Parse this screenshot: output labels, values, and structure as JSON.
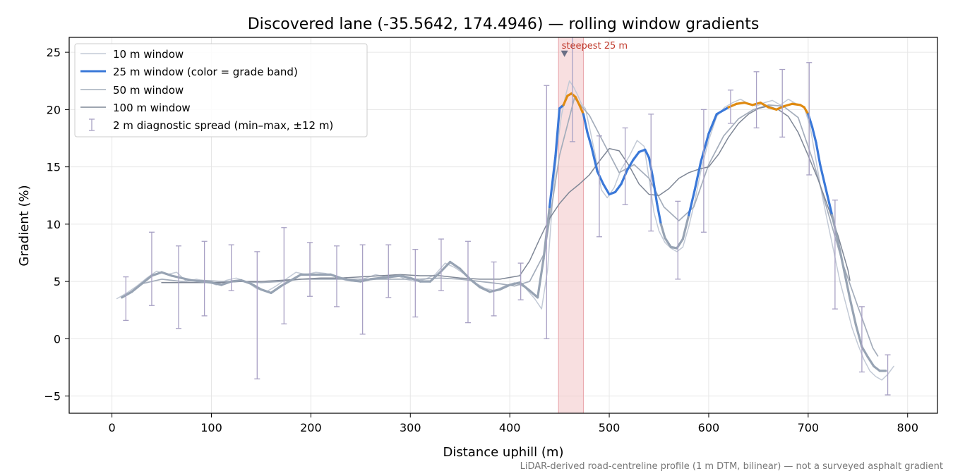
{
  "chart_data": {
    "type": "line",
    "title": "Discovered lane (-35.5642, 174.4946) — rolling window gradients",
    "xlabel": "Distance uphill (m)",
    "ylabel": "Gradient (%)",
    "xlim": [
      -43,
      830
    ],
    "ylim": [
      -6.5,
      26.3
    ],
    "x_ticks": [
      0,
      100,
      200,
      300,
      400,
      500,
      600,
      700,
      800
    ],
    "y_ticks": [
      -5,
      0,
      5,
      10,
      15,
      20,
      25
    ],
    "grid": true,
    "legend_position": "top-left",
    "footnote": "LiDAR-derived road-centreline profile (1 m DTM, bilinear) — not a surveyed asphalt gradient",
    "highlight_band": {
      "x0": 449,
      "x1": 474,
      "color": "#f2c4c6"
    },
    "annotation": {
      "text": "steepest 25 m",
      "x": 455,
      "y": 24.9
    },
    "grade_band_color_threshold": 20,
    "colors": {
      "w10": "#c3cad6",
      "w25_normal": "#3a78d8",
      "w25_gray": "#97a3b3",
      "w25_steep": "#e08a10",
      "w50": "#a4adbb",
      "w100": "#7f8796",
      "errorbar": "#a8a1c4",
      "marker": "#6b6f85",
      "annot": "#c0392b"
    },
    "series": [
      {
        "name": "10 m window",
        "x": [
          5,
          15,
          25,
          35,
          45,
          55,
          65,
          75,
          85,
          95,
          105,
          115,
          125,
          135,
          145,
          155,
          165,
          175,
          185,
          195,
          205,
          215,
          225,
          235,
          245,
          255,
          265,
          275,
          285,
          295,
          305,
          315,
          325,
          335,
          345,
          355,
          365,
          375,
          385,
          395,
          405,
          415,
          425,
          432,
          438,
          443,
          448,
          452,
          456,
          460,
          464,
          468,
          472,
          476,
          480,
          486,
          492,
          498,
          505,
          512,
          520,
          528,
          535,
          540,
          545,
          550,
          556,
          562,
          568,
          574,
          580,
          586,
          592,
          600,
          608,
          616,
          624,
          632,
          640,
          648,
          656,
          664,
          672,
          680,
          688,
          696,
          702,
          708,
          714,
          720,
          726,
          732,
          738,
          744,
          750,
          756,
          762,
          768,
          774,
          780,
          786
        ],
        "y": [
          3.5,
          4.0,
          4.6,
          5.3,
          5.9,
          5.6,
          5.8,
          5.0,
          5.2,
          5.0,
          4.7,
          5.1,
          5.3,
          5.0,
          4.4,
          4.1,
          4.6,
          5.2,
          5.8,
          5.6,
          5.8,
          5.7,
          5.4,
          5.1,
          5.0,
          5.3,
          5.6,
          5.4,
          5.6,
          5.2,
          5.0,
          5.2,
          5.6,
          6.6,
          6.2,
          5.6,
          4.9,
          4.4,
          4.2,
          4.6,
          4.9,
          4.5,
          3.5,
          2.6,
          6.0,
          12.0,
          17.0,
          19.5,
          21.2,
          22.5,
          22.0,
          21.3,
          20.5,
          20.1,
          18.5,
          16.0,
          13.0,
          12.3,
          13.2,
          14.8,
          15.9,
          17.3,
          16.8,
          14.0,
          11.0,
          9.4,
          8.4,
          7.9,
          7.6,
          8.0,
          9.8,
          12.0,
          14.6,
          17.3,
          19.4,
          20.2,
          20.6,
          20.9,
          20.5,
          20.3,
          20.6,
          20.8,
          20.4,
          20.9,
          20.5,
          20.2,
          18.5,
          15.5,
          12.5,
          10.0,
          7.5,
          5.0,
          3.0,
          1.0,
          -0.5,
          -1.8,
          -2.8,
          -3.3,
          -3.6,
          -3.1,
          -2.4
        ]
      },
      {
        "name": "25 m window (color = grade band)",
        "x": [
          10,
          20,
          30,
          40,
          50,
          60,
          70,
          80,
          90,
          100,
          110,
          120,
          130,
          140,
          150,
          160,
          170,
          180,
          190,
          200,
          210,
          220,
          230,
          240,
          250,
          260,
          270,
          280,
          290,
          300,
          310,
          320,
          330,
          340,
          350,
          360,
          370,
          380,
          390,
          400,
          410,
          420,
          428,
          434,
          440,
          446,
          450,
          454,
          458,
          462,
          466,
          470,
          474,
          478,
          482,
          488,
          494,
          500,
          506,
          512,
          518,
          524,
          530,
          536,
          540,
          544,
          548,
          552,
          556,
          562,
          568,
          574,
          580,
          586,
          592,
          600,
          608,
          616,
          620,
          628,
          636,
          644,
          652,
          660,
          668,
          676,
          684,
          692,
          696,
          700,
          704,
          708,
          712,
          718,
          724,
          730,
          736,
          742,
          748,
          754,
          760,
          766,
          772,
          778
        ],
        "y": [
          3.6,
          4.1,
          4.8,
          5.5,
          5.8,
          5.5,
          5.3,
          5.1,
          5.0,
          4.9,
          4.7,
          5.0,
          5.1,
          4.8,
          4.3,
          4.0,
          4.6,
          5.1,
          5.6,
          5.6,
          5.6,
          5.6,
          5.3,
          5.1,
          5.0,
          5.2,
          5.3,
          5.4,
          5.5,
          5.3,
          5.0,
          5.0,
          5.8,
          6.7,
          6.1,
          5.2,
          4.5,
          4.1,
          4.3,
          4.7,
          4.9,
          4.2,
          3.6,
          7.0,
          11.5,
          16.0,
          20.1,
          20.4,
          21.2,
          21.4,
          21.1,
          20.4,
          19.6,
          18.0,
          16.8,
          14.6,
          13.5,
          12.6,
          12.8,
          13.5,
          14.7,
          15.6,
          16.3,
          16.5,
          15.8,
          14.0,
          11.8,
          10.0,
          8.8,
          8.0,
          7.9,
          8.7,
          10.8,
          13.0,
          15.4,
          17.9,
          19.6,
          20.0,
          20.2,
          20.5,
          20.6,
          20.4,
          20.6,
          20.2,
          20.0,
          20.3,
          20.5,
          20.4,
          20.2,
          19.6,
          18.5,
          17.1,
          15.2,
          13.0,
          10.8,
          8.5,
          6.0,
          3.5,
          1.2,
          -0.7,
          -1.6,
          -2.4,
          -2.8,
          -2.8
        ],
        "colors": [
          "#97a3b3",
          "#97a3b3",
          "#97a3b3",
          "#97a3b3",
          "#97a3b3",
          "#97a3b3",
          "#97a3b3",
          "#97a3b3",
          "#97a3b3",
          "#97a3b3",
          "#97a3b3",
          "#97a3b3",
          "#97a3b3",
          "#97a3b3",
          "#97a3b3",
          "#97a3b3",
          "#97a3b3",
          "#97a3b3",
          "#97a3b3",
          "#97a3b3",
          "#97a3b3",
          "#97a3b3",
          "#97a3b3",
          "#97a3b3",
          "#97a3b3",
          "#97a3b3",
          "#97a3b3",
          "#97a3b3",
          "#97a3b3",
          "#97a3b3",
          "#97a3b3",
          "#97a3b3",
          "#97a3b3",
          "#97a3b3",
          "#97a3b3",
          "#97a3b3",
          "#97a3b3",
          "#97a3b3",
          "#97a3b3",
          "#97a3b3",
          "#97a3b3",
          "#97a3b3",
          "#97a3b3",
          "#97a3b3",
          "#3a78d8",
          "#3a78d8",
          "#3a78d8",
          "#e08a10",
          "#e08a10",
          "#e08a10",
          "#e08a10",
          "#e08a10",
          "#3a78d8",
          "#3a78d8",
          "#3a78d8",
          "#3a78d8",
          "#3a78d8",
          "#3a78d8",
          "#3a78d8",
          "#3a78d8",
          "#3a78d8",
          "#3a78d8",
          "#3a78d8",
          "#3a78d8",
          "#3a78d8",
          "#3a78d8",
          "#3a78d8",
          "#97a3b3",
          "#97a3b3",
          "#97a3b3",
          "#97a3b3",
          "#97a3b3",
          "#3a78d8",
          "#3a78d8",
          "#3a78d8",
          "#3a78d8",
          "#3a78d8",
          "#3a78d8",
          "#e08a10",
          "#e08a10",
          "#e08a10",
          "#e08a10",
          "#e08a10",
          "#e08a10",
          "#e08a10",
          "#e08a10",
          "#e08a10",
          "#e08a10",
          "#e08a10",
          "#3a78d8",
          "#3a78d8",
          "#3a78d8",
          "#3a78d8",
          "#3a78d8",
          "#97a3b3",
          "#97a3b3",
          "#97a3b3",
          "#97a3b3",
          "#97a3b3",
          "#97a3b3",
          "#97a3b3",
          "#97a3b3",
          "#97a3b3",
          "#97a3b3"
        ]
      },
      {
        "name": "50 m window",
        "x": [
          30,
          50,
          70,
          90,
          110,
          130,
          150,
          170,
          190,
          210,
          230,
          250,
          270,
          290,
          310,
          330,
          350,
          370,
          390,
          405,
          420,
          435,
          450,
          465,
          480,
          495,
          510,
          525,
          540,
          555,
          570,
          585,
          600,
          615,
          630,
          645,
          660,
          675,
          690,
          705,
          720,
          735,
          750,
          765,
          770
        ],
        "y": [
          4.8,
          5.2,
          5.0,
          5.1,
          5.0,
          5.0,
          4.9,
          5.0,
          5.2,
          5.2,
          5.2,
          5.2,
          5.2,
          5.2,
          5.2,
          5.3,
          5.2,
          5.0,
          4.8,
          4.6,
          5.0,
          7.5,
          16.0,
          21.0,
          19.5,
          17.0,
          14.5,
          15.2,
          14.0,
          11.5,
          10.3,
          11.5,
          15.2,
          17.7,
          19.2,
          20.0,
          20.4,
          20.3,
          19.3,
          15.5,
          11.0,
          6.5,
          2.8,
          -0.8,
          -1.5
        ]
      },
      {
        "name": "100 m window",
        "x": [
          50,
          70,
          90,
          110,
          130,
          150,
          170,
          190,
          210,
          230,
          250,
          270,
          290,
          310,
          330,
          350,
          370,
          390,
          410,
          420,
          430,
          440,
          450,
          460,
          470,
          480,
          490,
          500,
          510,
          520,
          530,
          540,
          550,
          560,
          570,
          580,
          590,
          600,
          610,
          620,
          630,
          640,
          650,
          660,
          670,
          680,
          690,
          700,
          710,
          720,
          730,
          740,
          742
        ],
        "y": [
          4.9,
          4.9,
          4.9,
          4.9,
          5.0,
          5.0,
          5.1,
          5.2,
          5.3,
          5.3,
          5.4,
          5.5,
          5.6,
          5.5,
          5.5,
          5.3,
          5.2,
          5.2,
          5.5,
          6.8,
          8.7,
          10.5,
          11.8,
          12.8,
          13.5,
          14.3,
          15.5,
          16.6,
          16.4,
          15.1,
          13.5,
          12.6,
          12.5,
          13.1,
          14.0,
          14.5,
          14.8,
          15.0,
          16.1,
          17.6,
          18.8,
          19.6,
          20.1,
          20.3,
          20.0,
          19.4,
          18.0,
          16.0,
          13.9,
          11.5,
          9.0,
          6.0,
          5.1
        ]
      },
      {
        "name": "2 m diagnostic spread (min–max, ±12 m)",
        "x": [
          14,
          40,
          67,
          93,
          120,
          146,
          173,
          199,
          226,
          252,
          278,
          305,
          331,
          358,
          384,
          411,
          437,
          463,
          490,
          516,
          542,
          569,
          595,
          622,
          648,
          674,
          701,
          727,
          754,
          780
        ],
        "lo": [
          1.6,
          2.9,
          0.9,
          2.0,
          4.2,
          -3.5,
          1.3,
          3.7,
          2.8,
          0.4,
          3.6,
          1.9,
          4.2,
          1.4,
          2.0,
          3.4,
          0.0,
          17.2,
          8.9,
          11.7,
          9.4,
          5.2,
          9.3,
          18.8,
          18.4,
          17.6,
          14.3,
          2.6,
          -2.9,
          -4.9
        ],
        "hi": [
          5.4,
          9.3,
          8.1,
          8.5,
          8.2,
          7.6,
          9.7,
          8.4,
          8.1,
          8.2,
          8.2,
          7.8,
          8.7,
          8.5,
          6.7,
          6.6,
          22.1,
          27.1,
          17.7,
          18.4,
          19.6,
          12.0,
          20.0,
          21.7,
          23.3,
          23.5,
          24.1,
          12.1,
          2.8,
          -1.4
        ]
      }
    ]
  }
}
